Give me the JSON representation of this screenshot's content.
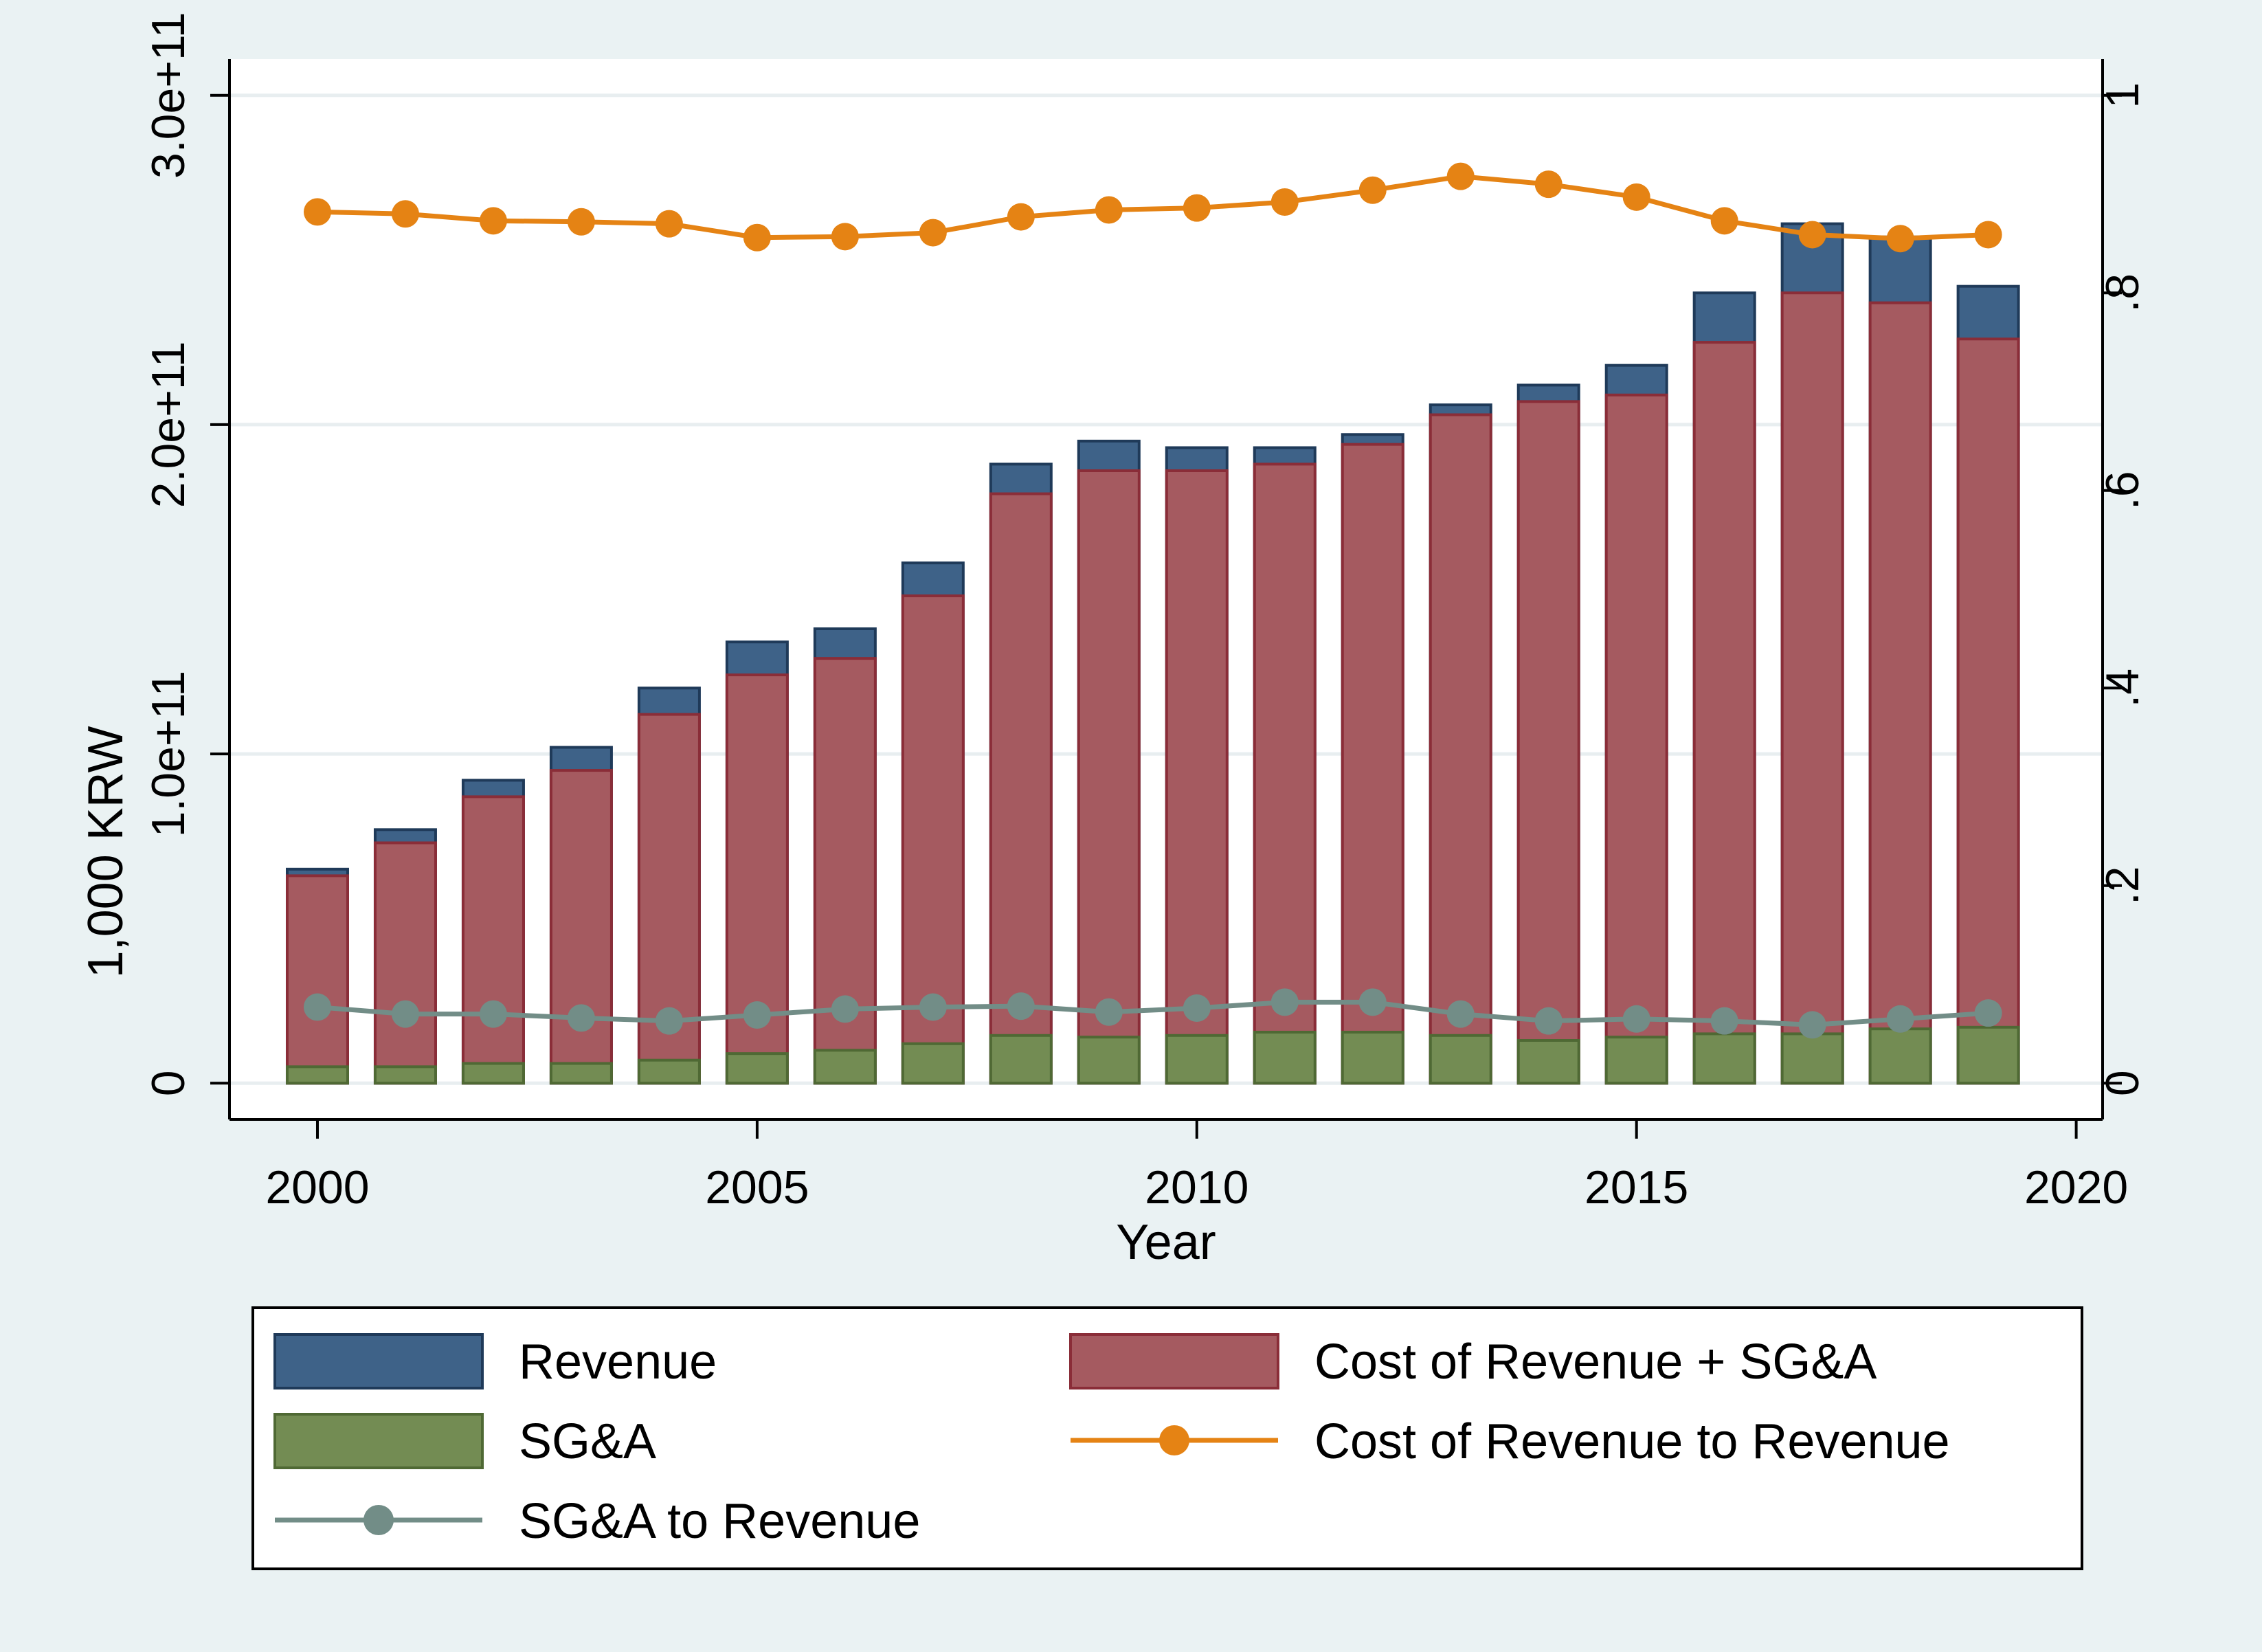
{
  "chart_data": {
    "type": "bar",
    "xlabel": "Year",
    "ylabel": "1,000 KRW",
    "x": [
      2000,
      2001,
      2002,
      2003,
      2004,
      2005,
      2006,
      2007,
      2008,
      2009,
      2010,
      2011,
      2012,
      2013,
      2014,
      2015,
      2016,
      2017,
      2018,
      2019
    ],
    "xlim": [
      1999,
      2020.3
    ],
    "xticks": [
      2000,
      2005,
      2010,
      2015,
      2020
    ],
    "xtick_labels": [
      "2000",
      "2005",
      "2010",
      "2015",
      "2020"
    ],
    "ylim_left": [
      -11000000000.0,
      311000000000.0
    ],
    "yticks_left": [
      0,
      100000000000.0,
      200000000000.0,
      300000000000.0
    ],
    "ytick_labels_left": [
      "0",
      "1.0e+11",
      "2.0e+11",
      "3.0e+11"
    ],
    "ylim_right": [
      -0.0367,
      1.0367
    ],
    "yticks_right": [
      0,
      0.2,
      0.4,
      0.6,
      0.8,
      1
    ],
    "ytick_labels_right": [
      "0",
      ".2",
      ".4",
      ".6",
      ".8",
      "1"
    ],
    "grid": true,
    "legend_position": "bottom",
    "series": [
      {
        "name": "Revenue",
        "kind": "bar",
        "axis": "left",
        "color": "#3e6288",
        "values": [
          65000000000.0,
          77000000000.0,
          92000000000.0,
          102000000000.0,
          120000000000.0,
          134000000000.0,
          138000000000.0,
          158000000000.0,
          188000000000.0,
          195000000000.0,
          193000000000.0,
          193000000000.0,
          197000000000.0,
          206000000000.0,
          212000000000.0,
          218000000000.0,
          240000000000.0,
          261000000000.0,
          257000000000.0,
          242000000000.0
        ]
      },
      {
        "name": "Cost of Revenue + SG&A",
        "kind": "bar",
        "axis": "left",
        "color": "#a55a60",
        "values": [
          63000000000.0,
          73000000000.0,
          87000000000.0,
          95000000000.0,
          112000000000.0,
          124000000000.0,
          129000000000.0,
          148000000000.0,
          179000000000.0,
          186000000000.0,
          186000000000.0,
          188000000000.0,
          194000000000.0,
          203000000000.0,
          207000000000.0,
          209000000000.0,
          225000000000.0,
          240000000000.0,
          237000000000.0,
          226000000000.0
        ]
      },
      {
        "name": "SG&A",
        "kind": "bar",
        "axis": "left",
        "color": "#738c53",
        "values": [
          5000000000.0,
          5000000000.0,
          6000000000.0,
          6000000000.0,
          7000000000.0,
          9000000000.0,
          10000000000.0,
          12000000000.0,
          14500000000.0,
          14000000000.0,
          14500000000.0,
          15500000000.0,
          15500000000.0,
          14500000000.0,
          13000000000.0,
          14000000000.0,
          15000000000.0,
          15000000000.0,
          16500000000.0,
          17000000000.0
        ]
      },
      {
        "name": "Cost of Revenue to Revenue",
        "kind": "line",
        "axis": "right",
        "color": "#e58314",
        "values": [
          0.882,
          0.88,
          0.873,
          0.872,
          0.87,
          0.856,
          0.857,
          0.861,
          0.877,
          0.884,
          0.886,
          0.892,
          0.904,
          0.918,
          0.91,
          0.897,
          0.873,
          0.859,
          0.855,
          0.859
        ]
      },
      {
        "name": "SG&A to Revenue",
        "kind": "line",
        "axis": "right",
        "color": "#728d87",
        "values": [
          0.077,
          0.07,
          0.07,
          0.066,
          0.063,
          0.069,
          0.075,
          0.077,
          0.078,
          0.072,
          0.076,
          0.082,
          0.082,
          0.07,
          0.063,
          0.065,
          0.063,
          0.059,
          0.065,
          0.071
        ]
      }
    ]
  }
}
